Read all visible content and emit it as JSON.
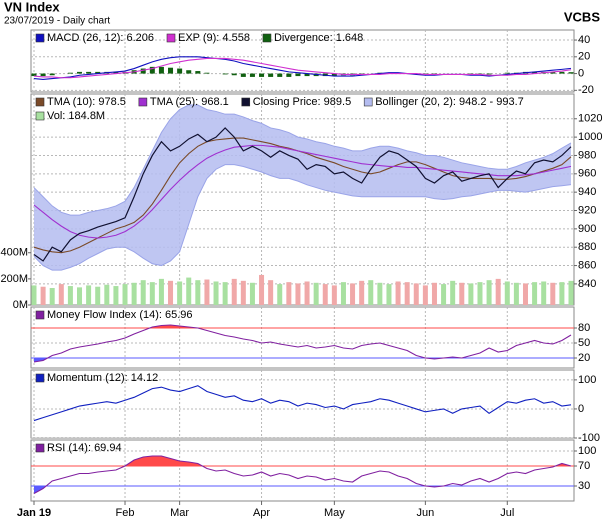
{
  "header": {
    "title": "VN Index",
    "subtitle": "23/07/2019 - Daily chart",
    "brand": "VCBS"
  },
  "chart_data": [
    {
      "type": "line",
      "ylim": [
        -22,
        52
      ],
      "yticks": [
        -20,
        0,
        20,
        40
      ],
      "grid": true,
      "series": [
        {
          "name": "MACD (26, 12): 6.206",
          "color": "#1010c0",
          "values": [
            -6,
            -7,
            -6,
            -5,
            -4,
            -2,
            -1,
            0,
            1,
            2,
            3,
            6,
            10,
            14,
            17,
            19,
            20,
            20,
            20,
            19,
            18,
            17,
            15,
            12,
            10,
            8,
            6,
            4,
            2,
            1,
            0,
            -1,
            -2,
            -3,
            -3,
            -3,
            -2,
            -1,
            0,
            1,
            1,
            0,
            -1,
            -2,
            -2,
            -1,
            -1,
            -1,
            -2,
            -2,
            -3,
            -2,
            -1,
            0,
            1,
            2,
            3,
            4,
            5,
            6.206
          ]
        },
        {
          "name": "EXP (9): 4.558",
          "color": "#d030d0",
          "values": [
            -3,
            -4,
            -4,
            -5,
            -5,
            -4,
            -3,
            -2,
            -1,
            0,
            1,
            2,
            4,
            6,
            9,
            12,
            14,
            16,
            17,
            18,
            18,
            18,
            17,
            16,
            14,
            12,
            10,
            8,
            6,
            4,
            3,
            2,
            1,
            0,
            -1,
            -1,
            -1,
            -1,
            -1,
            0,
            0,
            0,
            0,
            -1,
            -1,
            -1,
            -1,
            -1,
            -1,
            -1,
            -2,
            -2,
            -2,
            -1,
            -1,
            0,
            1,
            2,
            3,
            4.558
          ]
        },
        {
          "name": "Divergence: 1.648",
          "color": "#106010",
          "kind": "bar",
          "values": [
            -3,
            -3,
            -2,
            0,
            1,
            2,
            2,
            2,
            2,
            2,
            2,
            4,
            6,
            8,
            8,
            7,
            6,
            4,
            3,
            1,
            0,
            -1,
            -2,
            -4,
            -4,
            -4,
            -4,
            -4,
            -4,
            -3,
            -3,
            -3,
            -3,
            -3,
            -2,
            -2,
            -1,
            0,
            1,
            1,
            1,
            0,
            -1,
            -1,
            -1,
            0,
            0,
            0,
            -1,
            -1,
            -1,
            0,
            1,
            1,
            2,
            2,
            2,
            2,
            2,
            1.648
          ]
        }
      ]
    },
    {
      "type": "line",
      "ylim": [
        817,
        1047
      ],
      "yticks": [
        840,
        860,
        880,
        900,
        920,
        940,
        960,
        980,
        1000,
        1020
      ],
      "grid": true,
      "y2lim": [
        0,
        1615
      ],
      "y2ticks": [
        {
          "value": 0,
          "label": "0M"
        },
        {
          "value": 200,
          "label": "200M"
        },
        {
          "value": 400,
          "label": "400M"
        }
      ],
      "series": [
        {
          "name": "TMA (10): 978.5",
          "color": "#7a4a28",
          "values": [
            880,
            877,
            875,
            874,
            876,
            880,
            885,
            890,
            895,
            900,
            903,
            907,
            915,
            927,
            942,
            958,
            972,
            982,
            990,
            995,
            997,
            998,
            999,
            999,
            997,
            995,
            993,
            990,
            988,
            985,
            982,
            978,
            975,
            972,
            968,
            965,
            962,
            960,
            962,
            966,
            970,
            973,
            973,
            970,
            966,
            962,
            958,
            956,
            955,
            955,
            955,
            954,
            954,
            955,
            957,
            960,
            963,
            966,
            970,
            978.5
          ]
        },
        {
          "name": "TMA (25): 968.1",
          "color": "#a030d0",
          "values": [
            926,
            918,
            910,
            903,
            897,
            893,
            891,
            890,
            891,
            893,
            897,
            903,
            911,
            921,
            932,
            943,
            953,
            962,
            970,
            977,
            982,
            986,
            989,
            990,
            991,
            991,
            990,
            989,
            987,
            985,
            983,
            981,
            979,
            977,
            975,
            973,
            971,
            970,
            969,
            968,
            968,
            967,
            967,
            966,
            965,
            964,
            963,
            962,
            961,
            960,
            959,
            958,
            958,
            958,
            959,
            960,
            962,
            964,
            966,
            968.1
          ]
        },
        {
          "name": "Closing Price: 989.5",
          "color": "#101030",
          "kind": "close",
          "values": [
            872,
            865,
            880,
            875,
            888,
            895,
            898,
            902,
            905,
            908,
            912,
            935,
            960,
            980,
            995,
            985,
            990,
            998,
            1003,
            995,
            1000,
            1010,
            1000,
            985,
            990,
            985,
            978,
            985,
            980,
            976,
            965,
            970,
            968,
            960,
            962,
            955,
            950,
            965,
            978,
            985,
            982,
            975,
            968,
            955,
            950,
            958,
            962,
            952,
            955,
            958,
            960,
            945,
            955,
            963,
            960,
            972,
            975,
            973,
            980,
            989.5
          ]
        },
        {
          "name": "Bollinger (20, 2): 948.2 - 993.7",
          "color": "#b4bcf0",
          "kind": "band",
          "upper": [
            945,
            935,
            925,
            918,
            915,
            915,
            918,
            920,
            922,
            925,
            930,
            945,
            965,
            985,
            1005,
            1020,
            1030,
            1035,
            1035,
            1030,
            1028,
            1025,
            1025,
            1022,
            1018,
            1015,
            1010,
            1008,
            1005,
            1000,
            998,
            995,
            993,
            990,
            988,
            985,
            985,
            988,
            990,
            990,
            988,
            985,
            983,
            980,
            980,
            978,
            975,
            972,
            970,
            968,
            966,
            965,
            965,
            968,
            972,
            975,
            978,
            982,
            988,
            993.7
          ],
          "lower": [
            870,
            860,
            855,
            855,
            858,
            862,
            868,
            873,
            878,
            880,
            880,
            875,
            868,
            862,
            860,
            865,
            875,
            905,
            935,
            955,
            965,
            970,
            970,
            968,
            965,
            962,
            958,
            955,
            955,
            952,
            948,
            945,
            942,
            940,
            938,
            936,
            935,
            935,
            935,
            935,
            935,
            935,
            935,
            935,
            933,
            932,
            933,
            935,
            936,
            938,
            940,
            942,
            942,
            941,
            940,
            942,
            944,
            946,
            947,
            948.2
          ]
        },
        {
          "name": "Vol: 184.8M",
          "color": "#a8e0a0",
          "down_color": "#f0a8a8",
          "kind": "bar",
          "axis": "y2",
          "values": [
            150,
            140,
            130,
            160,
            145,
            135,
            150,
            140,
            155,
            145,
            160,
            170,
            190,
            175,
            200,
            185,
            180,
            210,
            190,
            195,
            180,
            175,
            200,
            185,
            170,
            230,
            190,
            160,
            175,
            165,
            180,
            170,
            160,
            150,
            175,
            165,
            185,
            190,
            170,
            160,
            180,
            175,
            165,
            150,
            170,
            160,
            185,
            170,
            165,
            175,
            190,
            200,
            180,
            170,
            165,
            175,
            180,
            170,
            175,
            184.8
          ]
        }
      ]
    },
    {
      "type": "line",
      "ylim": [
        0,
        122
      ],
      "yticks": [
        20,
        50,
        80
      ],
      "grid": true,
      "bands": [
        {
          "value": 80,
          "color": "#ff4a4a",
          "side": "above"
        },
        {
          "value": 20,
          "color": "#5a5aff",
          "side": "below"
        }
      ],
      "series": [
        {
          "name": "Money Flow Index (14): 65.96",
          "color": "#8020a0",
          "values": [
            12,
            15,
            25,
            30,
            38,
            42,
            45,
            48,
            52,
            55,
            60,
            68,
            75,
            82,
            85,
            86,
            84,
            82,
            80,
            75,
            70,
            65,
            62,
            58,
            55,
            50,
            52,
            48,
            45,
            42,
            45,
            40,
            42,
            45,
            40,
            38,
            45,
            48,
            50,
            45,
            40,
            35,
            25,
            20,
            18,
            20,
            22,
            20,
            25,
            30,
            40,
            32,
            35,
            45,
            50,
            55,
            50,
            48,
            55,
            65.96
          ]
        }
      ]
    },
    {
      "type": "line",
      "ylim": [
        -100,
        134
      ],
      "yticks": [
        -100,
        0,
        100
      ],
      "grid": true,
      "series": [
        {
          "name": "Momentum (12): 14.12",
          "color": "#1020c0",
          "values": [
            -40,
            -30,
            -20,
            -10,
            0,
            10,
            15,
            20,
            25,
            20,
            30,
            40,
            55,
            70,
            75,
            65,
            60,
            70,
            80,
            60,
            50,
            40,
            45,
            30,
            25,
            35,
            20,
            30,
            25,
            10,
            20,
            15,
            5,
            10,
            0,
            15,
            20,
            25,
            35,
            30,
            20,
            10,
            0,
            -10,
            -5,
            0,
            -15,
            0,
            5,
            10,
            -15,
            5,
            25,
            20,
            30,
            35,
            20,
            25,
            10,
            14.12
          ]
        }
      ]
    },
    {
      "type": "line",
      "ylim": [
        0,
        122
      ],
      "yticks": [
        30,
        70,
        100
      ],
      "grid": true,
      "bands": [
        {
          "value": 70,
          "color": "#ff4a4a",
          "side": "above"
        },
        {
          "value": 30,
          "color": "#5a5aff",
          "side": "below"
        }
      ],
      "categories": [
        "Jan 19",
        null,
        null,
        null,
        null,
        null,
        null,
        null,
        null,
        null,
        "Feb",
        null,
        null,
        null,
        null,
        null,
        "Mar",
        null,
        null,
        null,
        null,
        null,
        null,
        null,
        null,
        "Apr",
        null,
        null,
        null,
        null,
        null,
        null,
        null,
        "May",
        null,
        null,
        null,
        null,
        null,
        null,
        null,
        null,
        null,
        "Jun",
        null,
        null,
        null,
        null,
        null,
        null,
        null,
        null,
        "Jul",
        null,
        null,
        null,
        null,
        null,
        null,
        null
      ],
      "series": [
        {
          "name": "RSI (14): 69.94",
          "color": "#8020a0",
          "values": [
            15,
            25,
            40,
            45,
            50,
            55,
            55,
            58,
            60,
            62,
            70,
            82,
            88,
            90,
            90,
            85,
            80,
            78,
            75,
            65,
            60,
            62,
            55,
            50,
            52,
            58,
            50,
            55,
            52,
            45,
            50,
            48,
            42,
            45,
            40,
            38,
            50,
            55,
            60,
            58,
            50,
            45,
            35,
            30,
            28,
            30,
            35,
            32,
            40,
            45,
            38,
            45,
            55,
            58,
            55,
            62,
            65,
            68,
            75,
            69.94
          ]
        }
      ]
    }
  ]
}
